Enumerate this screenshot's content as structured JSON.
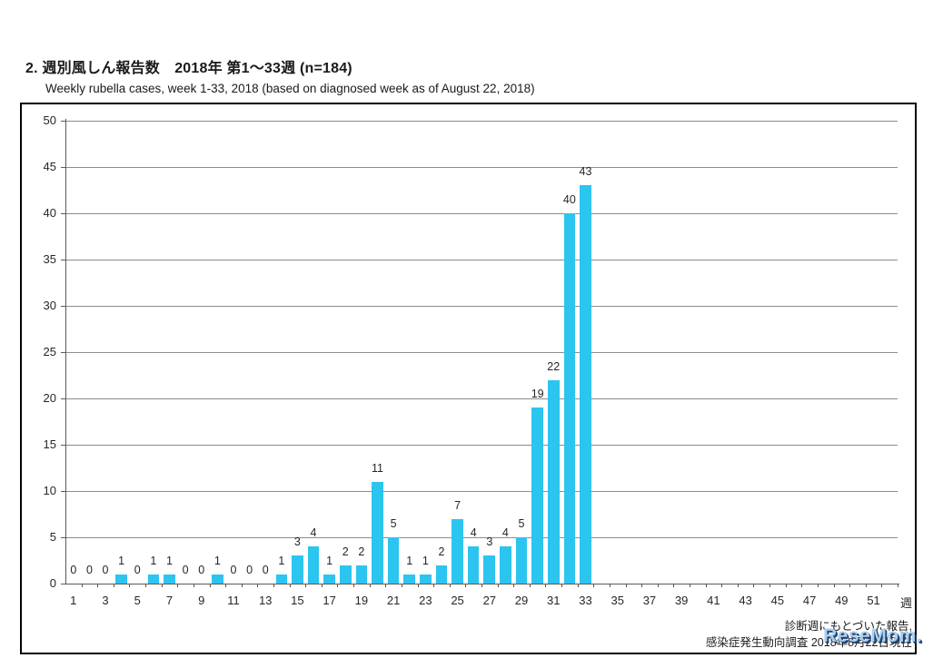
{
  "page": {
    "title": "2. 週別風しん報告数　2018年 第1～33週 (n=184)",
    "subtitle": "Weekly rubella cases, week 1-33, 2018 (based on diagnosed week as of August 22, 2018)"
  },
  "chart_data": {
    "type": "bar",
    "title": "週別風しん報告数 2018年 第1～33週 (n=184)",
    "xlabel": "週",
    "ylabel": "",
    "ylim": [
      0,
      50
    ],
    "ytick_step": 5,
    "x_axis_slots": 52,
    "grid": true,
    "legend": false,
    "categories": [
      1,
      2,
      3,
      4,
      5,
      6,
      7,
      8,
      9,
      10,
      11,
      12,
      13,
      14,
      15,
      16,
      17,
      18,
      19,
      20,
      21,
      22,
      23,
      24,
      25,
      26,
      27,
      28,
      29,
      30,
      31,
      32,
      33
    ],
    "values": [
      0,
      0,
      0,
      1,
      0,
      1,
      1,
      0,
      0,
      1,
      0,
      0,
      0,
      1,
      3,
      4,
      1,
      2,
      2,
      11,
      5,
      1,
      1,
      2,
      7,
      4,
      3,
      4,
      5,
      19,
      22,
      40,
      43
    ],
    "total_n": 184,
    "xtick_labels": [
      "1",
      "3",
      "5",
      "7",
      "9",
      "11",
      "13",
      "15",
      "17",
      "19",
      "21",
      "23",
      "25",
      "27",
      "29",
      "31",
      "33",
      "35",
      "37",
      "39",
      "41",
      "43",
      "45",
      "47",
      "49",
      "51"
    ],
    "bar_color": "#2bc5f0"
  },
  "annotations": {
    "source_line1": "診断週にもとづいた報告,",
    "source_line2": "感染症発生動向調査 2018年8月22日現在"
  },
  "watermark": {
    "text": "ReseMom."
  },
  "colors": {
    "bar": "#2bc5f0",
    "gridline": "#8c8c8c",
    "axis": "#595959",
    "border": "#000000",
    "text": "#262626",
    "watermark_fill": "#a9d0ee",
    "watermark_shadow": "#1a3a6e"
  }
}
